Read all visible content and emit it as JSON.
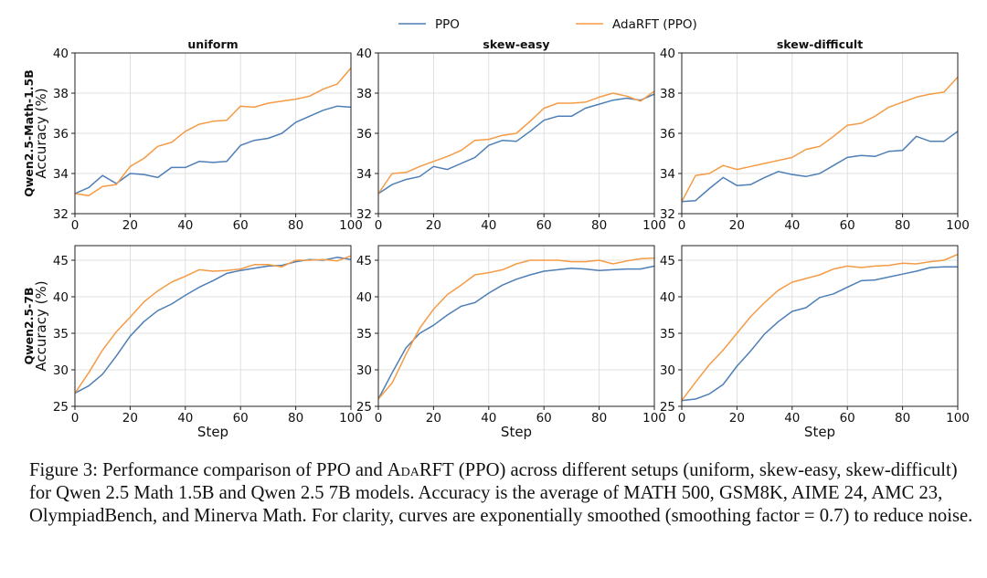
{
  "legend": [
    {
      "name": "PPO",
      "color": "#4e7fb6"
    },
    {
      "name": "AdaRFT (PPO)",
      "color": "#f59b45"
    }
  ],
  "caption": {
    "figure_label": "Figure 3:",
    "text_before": " Performance comparison of PPO and ",
    "method_small_caps": "AdaRFT",
    "text_after": " (PPO) across different setups (uniform, skew-easy, skew-difficult) for Qwen 2.5 Math 1.5B and Qwen 2.5 7B models. Accuracy is the average of MATH 500, GSM8K, AIME 24, AMC 23, OlympiadBench, and Minerva Math. For clarity, curves are exponentially smoothed (smoothing factor = 0.7) to reduce noise."
  },
  "rows": [
    {
      "label": "Qwen2.5-Math-1.5B",
      "ylabel": "Accuracy (%)"
    },
    {
      "label": "Qwen2.5-7B",
      "ylabel": "Accuracy (%)"
    }
  ],
  "chart_data": [
    {
      "type": "line",
      "title": "uniform",
      "xlabel": "",
      "ylabel": "Accuracy (%)",
      "xlim": [
        0,
        100
      ],
      "ylim": [
        32,
        40
      ],
      "xticks": [
        0,
        20,
        40,
        60,
        80,
        100
      ],
      "yticks": [
        32,
        34,
        36,
        38,
        40
      ],
      "grid": true,
      "x": [
        0,
        5,
        10,
        15,
        20,
        25,
        30,
        35,
        40,
        45,
        50,
        55,
        60,
        65,
        70,
        75,
        80,
        85,
        90,
        95,
        100
      ],
      "series": [
        {
          "name": "PPO",
          "values": [
            33.0,
            33.3,
            33.9,
            33.5,
            34.0,
            33.95,
            33.8,
            34.3,
            34.3,
            34.6,
            34.55,
            34.6,
            35.4,
            35.65,
            35.75,
            36.0,
            36.55,
            36.85,
            37.15,
            37.35,
            37.3
          ]
        },
        {
          "name": "AdaRFT (PPO)",
          "values": [
            33.0,
            32.9,
            33.35,
            33.45,
            34.35,
            34.75,
            35.35,
            35.55,
            36.1,
            36.45,
            36.6,
            36.65,
            37.35,
            37.3,
            37.5,
            37.6,
            37.7,
            37.85,
            38.2,
            38.45,
            39.25
          ]
        }
      ]
    },
    {
      "type": "line",
      "title": "skew-easy",
      "xlabel": "",
      "ylabel": "",
      "xlim": [
        0,
        100
      ],
      "ylim": [
        32,
        40
      ],
      "xticks": [
        0,
        20,
        40,
        60,
        80,
        100
      ],
      "yticks": [
        32,
        34,
        36,
        38,
        40
      ],
      "grid": true,
      "x": [
        0,
        5,
        10,
        15,
        20,
        25,
        30,
        35,
        40,
        45,
        50,
        55,
        60,
        65,
        70,
        75,
        80,
        85,
        90,
        95,
        100
      ],
      "series": [
        {
          "name": "PPO",
          "values": [
            33.0,
            33.45,
            33.7,
            33.85,
            34.35,
            34.2,
            34.5,
            34.8,
            35.4,
            35.65,
            35.6,
            36.1,
            36.65,
            36.85,
            36.85,
            37.25,
            37.45,
            37.65,
            37.75,
            37.65,
            37.95
          ]
        },
        {
          "name": "AdaRFT (PPO)",
          "values": [
            33.0,
            34.0,
            34.05,
            34.35,
            34.6,
            34.85,
            35.15,
            35.65,
            35.7,
            35.9,
            36.0,
            36.6,
            37.25,
            37.5,
            37.5,
            37.55,
            37.8,
            38.0,
            37.85,
            37.6,
            38.1
          ]
        }
      ]
    },
    {
      "type": "line",
      "title": "skew-difficult",
      "xlabel": "",
      "ylabel": "",
      "xlim": [
        0,
        100
      ],
      "ylim": [
        32,
        40
      ],
      "xticks": [
        0,
        20,
        40,
        60,
        80,
        100
      ],
      "yticks": [
        32,
        34,
        36,
        38,
        40
      ],
      "grid": true,
      "x": [
        0,
        5,
        10,
        15,
        20,
        25,
        30,
        35,
        40,
        45,
        50,
        55,
        60,
        65,
        70,
        75,
        80,
        85,
        90,
        95,
        100
      ],
      "series": [
        {
          "name": "PPO",
          "values": [
            32.6,
            32.65,
            33.25,
            33.8,
            33.4,
            33.45,
            33.8,
            34.1,
            33.95,
            33.85,
            34.0,
            34.4,
            34.8,
            34.9,
            34.85,
            35.1,
            35.15,
            35.85,
            35.6,
            35.6,
            36.1
          ]
        },
        {
          "name": "AdaRFT (PPO)",
          "values": [
            32.6,
            33.9,
            34.0,
            34.4,
            34.2,
            34.35,
            34.5,
            34.65,
            34.8,
            35.2,
            35.35,
            35.85,
            36.4,
            36.5,
            36.85,
            37.3,
            37.55,
            37.8,
            37.95,
            38.05,
            38.8
          ]
        }
      ]
    },
    {
      "type": "line",
      "title": "",
      "xlabel": "Step",
      "ylabel": "Accuracy (%)",
      "xlim": [
        0,
        100
      ],
      "ylim": [
        25,
        47
      ],
      "xticks": [
        0,
        20,
        40,
        60,
        80,
        100
      ],
      "yticks": [
        25,
        30,
        35,
        40,
        45
      ],
      "grid": true,
      "x": [
        0,
        5,
        10,
        15,
        20,
        25,
        30,
        35,
        40,
        45,
        50,
        55,
        60,
        65,
        70,
        75,
        80,
        85,
        90,
        95,
        100
      ],
      "series": [
        {
          "name": "PPO",
          "values": [
            26.8,
            27.8,
            29.4,
            31.9,
            34.6,
            36.6,
            38.1,
            39.0,
            40.2,
            41.3,
            42.2,
            43.2,
            43.6,
            43.9,
            44.2,
            44.3,
            44.8,
            45.1,
            45.0,
            45.4,
            45.1
          ]
        },
        {
          "name": "AdaRFT (PPO)",
          "values": [
            26.8,
            29.6,
            32.7,
            35.2,
            37.2,
            39.3,
            40.8,
            42.0,
            42.8,
            43.7,
            43.5,
            43.6,
            43.8,
            44.4,
            44.4,
            44.1,
            45.0,
            45.0,
            45.1,
            44.9,
            45.6
          ]
        }
      ]
    },
    {
      "type": "line",
      "title": "",
      "xlabel": "Step",
      "ylabel": "",
      "xlim": [
        0,
        100
      ],
      "ylim": [
        25,
        47
      ],
      "xticks": [
        0,
        20,
        40,
        60,
        80,
        100
      ],
      "yticks": [
        25,
        30,
        35,
        40,
        45
      ],
      "grid": true,
      "x": [
        0,
        5,
        10,
        15,
        20,
        25,
        30,
        35,
        40,
        45,
        50,
        55,
        60,
        65,
        70,
        75,
        80,
        85,
        90,
        95,
        100
      ],
      "series": [
        {
          "name": "PPO",
          "values": [
            26.0,
            29.6,
            33.0,
            35.0,
            36.1,
            37.5,
            38.7,
            39.2,
            40.5,
            41.6,
            42.4,
            43.0,
            43.5,
            43.7,
            43.9,
            43.8,
            43.6,
            43.7,
            43.8,
            43.8,
            44.2
          ]
        },
        {
          "name": "AdaRFT (PPO)",
          "values": [
            26.0,
            28.2,
            32.1,
            35.7,
            38.3,
            40.3,
            41.6,
            43.0,
            43.3,
            43.7,
            44.5,
            45.0,
            45.0,
            45.0,
            44.8,
            44.8,
            45.0,
            44.5,
            44.9,
            45.2,
            45.3
          ]
        }
      ]
    },
    {
      "type": "line",
      "title": "",
      "xlabel": "Step",
      "ylabel": "",
      "xlim": [
        0,
        100
      ],
      "ylim": [
        25,
        47
      ],
      "xticks": [
        0,
        20,
        40,
        60,
        80,
        100
      ],
      "yticks": [
        25,
        30,
        35,
        40,
        45
      ],
      "grid": true,
      "x": [
        0,
        5,
        10,
        15,
        20,
        25,
        30,
        35,
        40,
        45,
        50,
        55,
        60,
        65,
        70,
        75,
        80,
        85,
        90,
        95,
        100
      ],
      "series": [
        {
          "name": "PPO",
          "values": [
            25.8,
            26.0,
            26.7,
            28.0,
            30.5,
            32.6,
            34.9,
            36.6,
            38.0,
            38.5,
            39.9,
            40.4,
            41.3,
            42.2,
            42.3,
            42.7,
            43.1,
            43.5,
            44.0,
            44.1,
            44.1
          ]
        },
        {
          "name": "AdaRFT (PPO)",
          "values": [
            25.8,
            28.3,
            30.7,
            32.7,
            35.0,
            37.3,
            39.2,
            40.9,
            42.0,
            42.5,
            43.0,
            43.8,
            44.2,
            44.0,
            44.2,
            44.3,
            44.6,
            44.5,
            44.8,
            45.0,
            45.8
          ]
        }
      ]
    }
  ]
}
